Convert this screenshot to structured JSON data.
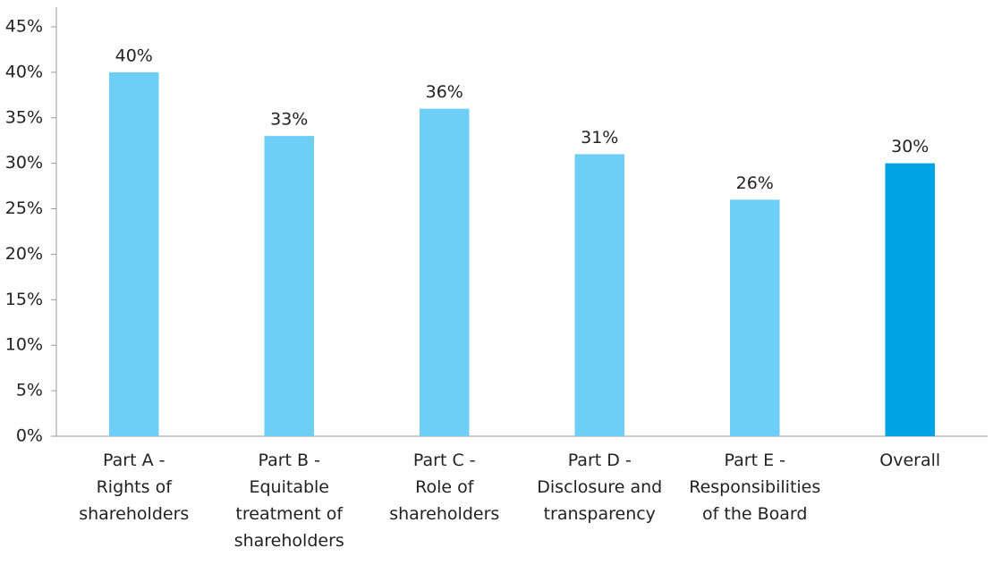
{
  "chart_data": {
    "type": "bar",
    "categories": [
      "Part A -\nRights of\nshareholders",
      "Part B -\nEquitable\ntreatment of\nshareholders",
      "Part C -\nRole of\nshareholders",
      "Part D -\nDisclosure and\ntransparency",
      "Part E -\nResponsibilities\nof the Board",
      "Overall"
    ],
    "values": [
      40,
      33,
      36,
      31,
      26,
      30
    ],
    "value_labels": [
      "40%",
      "33%",
      "36%",
      "31%",
      "26%",
      "30%"
    ],
    "colors": [
      "#6dcff6",
      "#6dcff6",
      "#6dcff6",
      "#6dcff6",
      "#6dcff6",
      "#00a3e4"
    ],
    "ylim": [
      0,
      45
    ],
    "yticks": [
      {
        "value": 0,
        "label": "0%"
      },
      {
        "value": 5,
        "label": "5%"
      },
      {
        "value": 10,
        "label": "10%"
      },
      {
        "value": 15,
        "label": "15%"
      },
      {
        "value": 20,
        "label": "20%"
      },
      {
        "value": 25,
        "label": "25%"
      },
      {
        "value": 30,
        "label": "30%"
      },
      {
        "value": 35,
        "label": "35%"
      },
      {
        "value": 40,
        "label": "40%"
      },
      {
        "value": 45,
        "label": "45%"
      }
    ],
    "grid": false
  }
}
